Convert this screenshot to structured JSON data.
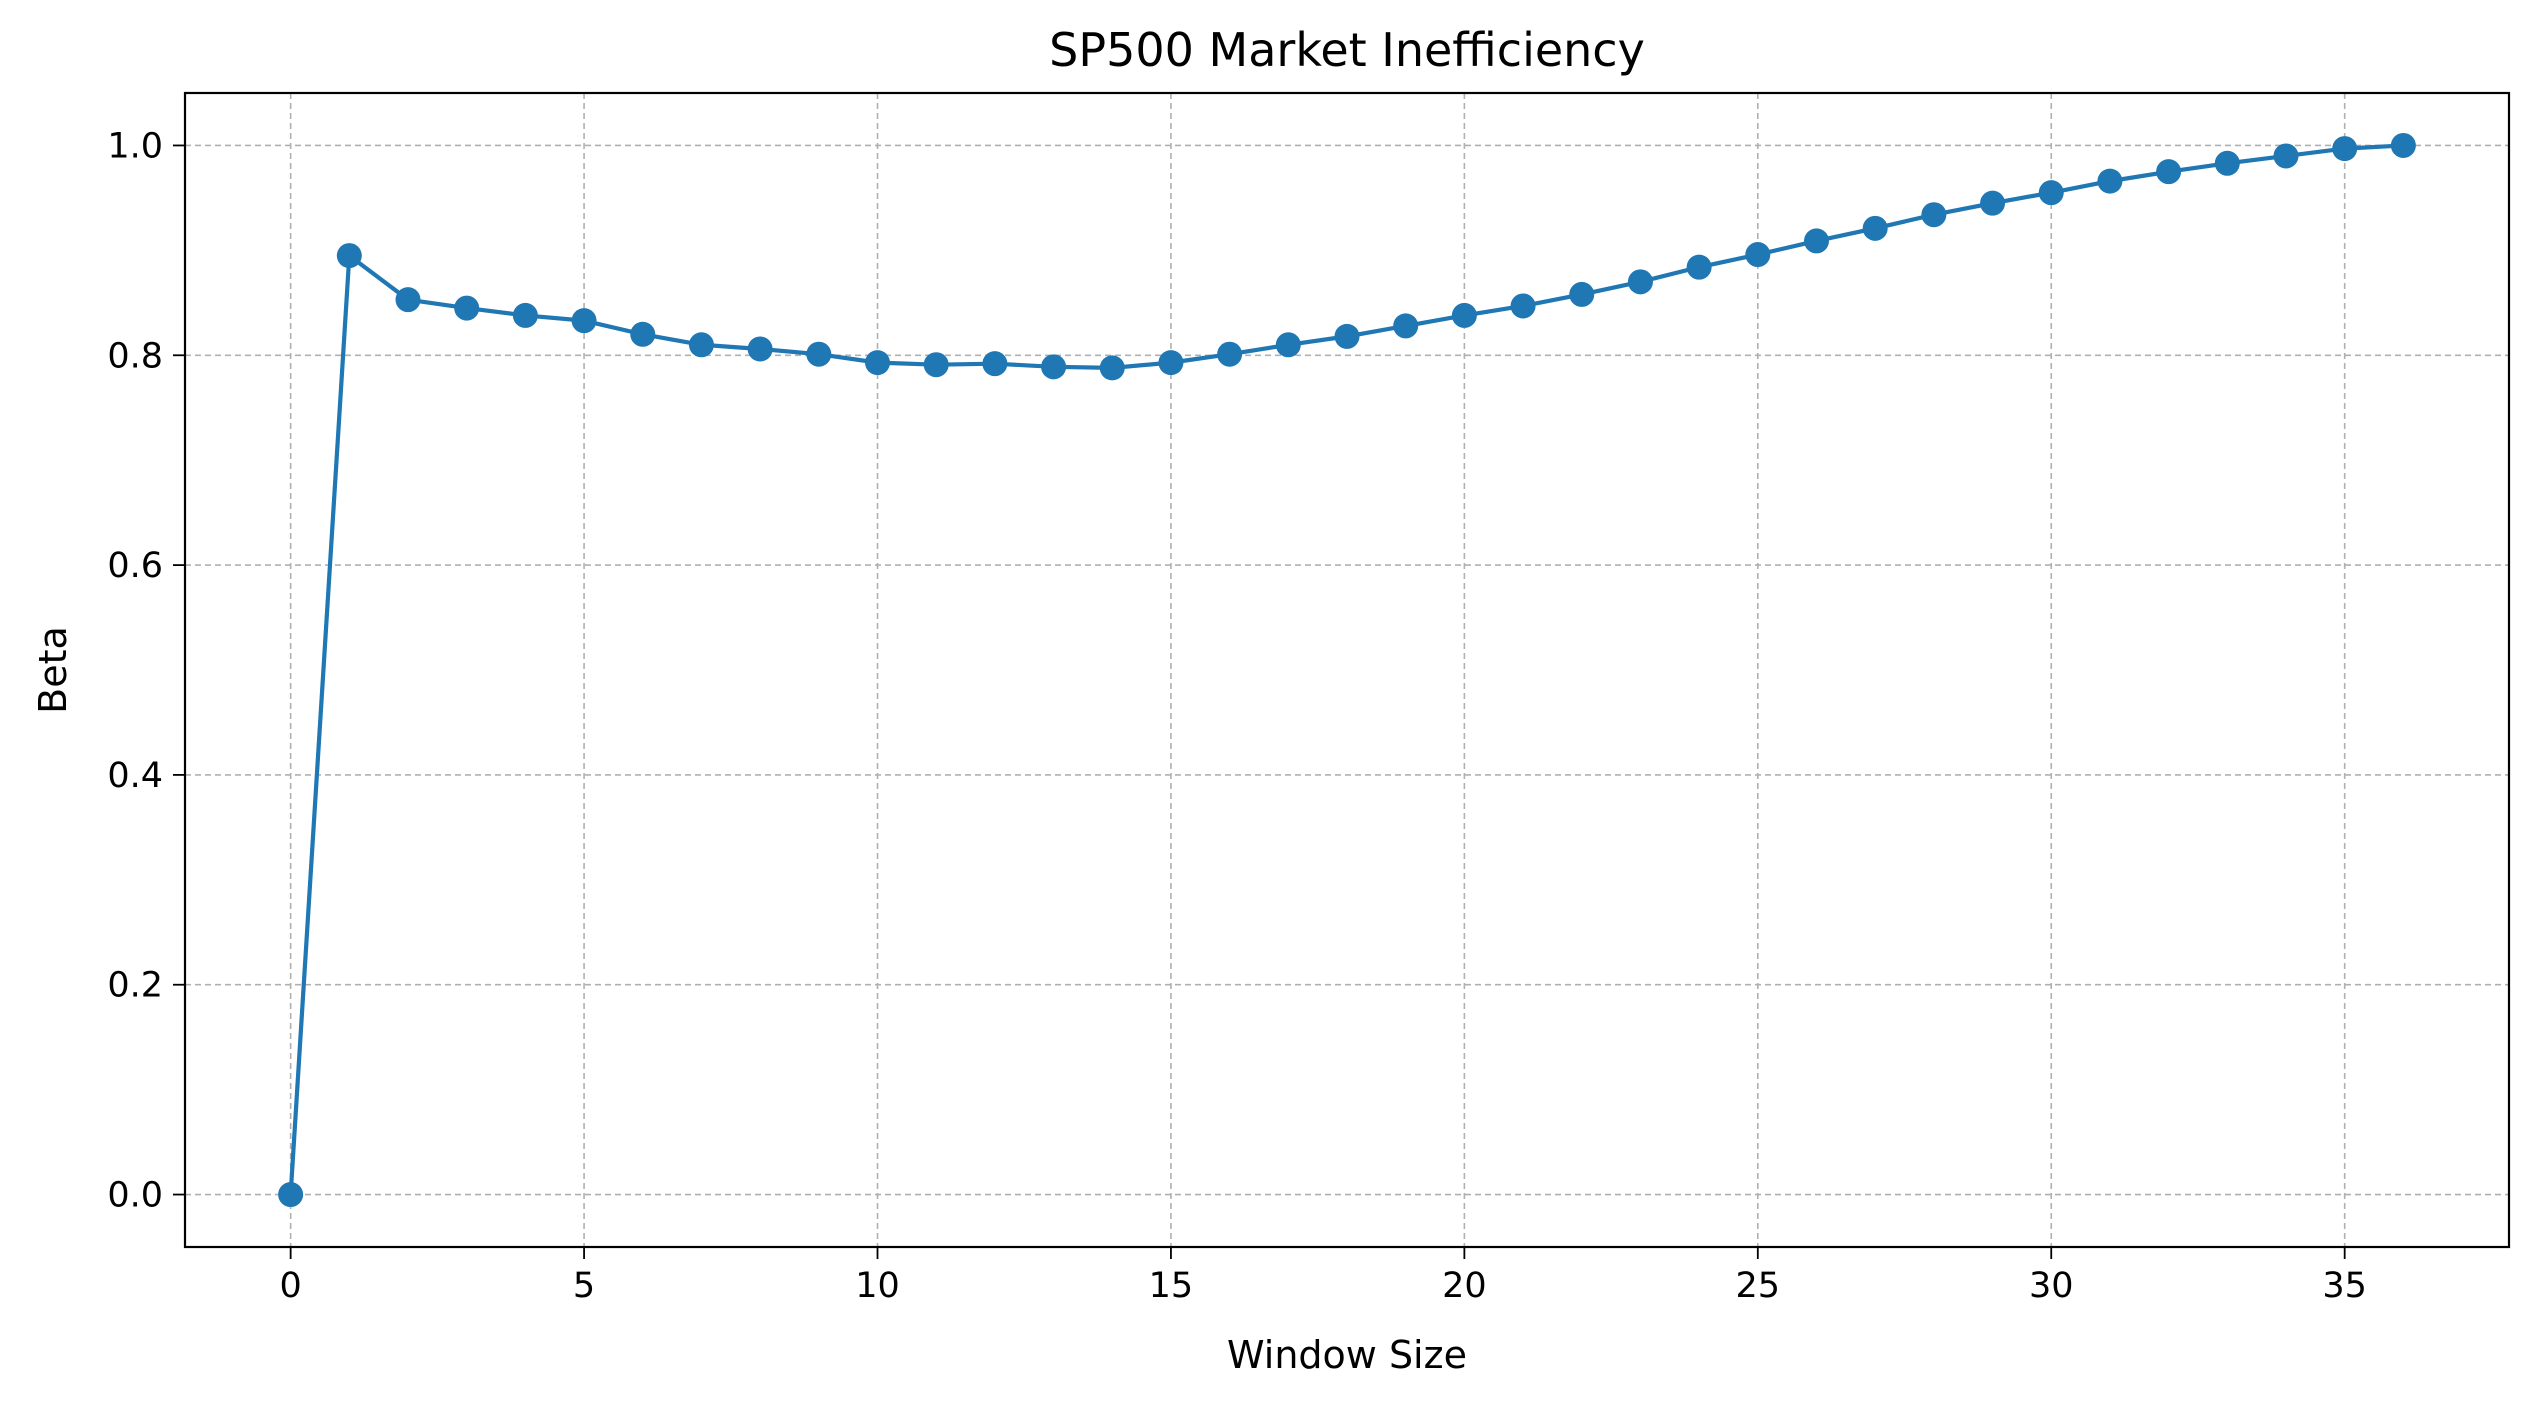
{
  "chart_data": {
    "type": "line",
    "title": "SP500 Market Inefficiency",
    "xlabel": "Window Size",
    "ylabel": "Beta",
    "xlim": [
      -1.8,
      37.8
    ],
    "ylim": [
      -0.05,
      1.05
    ],
    "xticks": [
      0,
      5,
      10,
      15,
      20,
      25,
      30,
      35
    ],
    "yticks": [
      0.0,
      0.2,
      0.4,
      0.6,
      0.8,
      1.0
    ],
    "xtick_labels": [
      "0",
      "5",
      "10",
      "15",
      "20",
      "25",
      "30",
      "35"
    ],
    "ytick_labels": [
      "0.0",
      "0.2",
      "0.4",
      "0.6",
      "0.8",
      "1.0"
    ],
    "grid": true,
    "color": "#1f77b4",
    "markers": true,
    "series": [
      {
        "x": [
          0,
          1,
          2,
          3,
          4,
          5,
          6,
          7,
          8,
          9,
          10,
          11,
          12,
          13,
          14,
          15,
          16,
          17,
          18,
          19,
          20,
          21,
          22,
          23,
          24,
          25,
          26,
          27,
          28,
          29,
          30,
          31,
          32,
          33,
          34,
          35,
          36
        ],
        "values": [
          0.0,
          0.895,
          0.853,
          0.845,
          0.838,
          0.833,
          0.82,
          0.81,
          0.806,
          0.801,
          0.793,
          0.791,
          0.792,
          0.789,
          0.788,
          0.793,
          0.801,
          0.81,
          0.818,
          0.828,
          0.838,
          0.847,
          0.858,
          0.87,
          0.884,
          0.896,
          0.909,
          0.921,
          0.934,
          0.945,
          0.955,
          0.966,
          0.975,
          0.983,
          0.99,
          0.997,
          1.0
        ]
      }
    ]
  }
}
